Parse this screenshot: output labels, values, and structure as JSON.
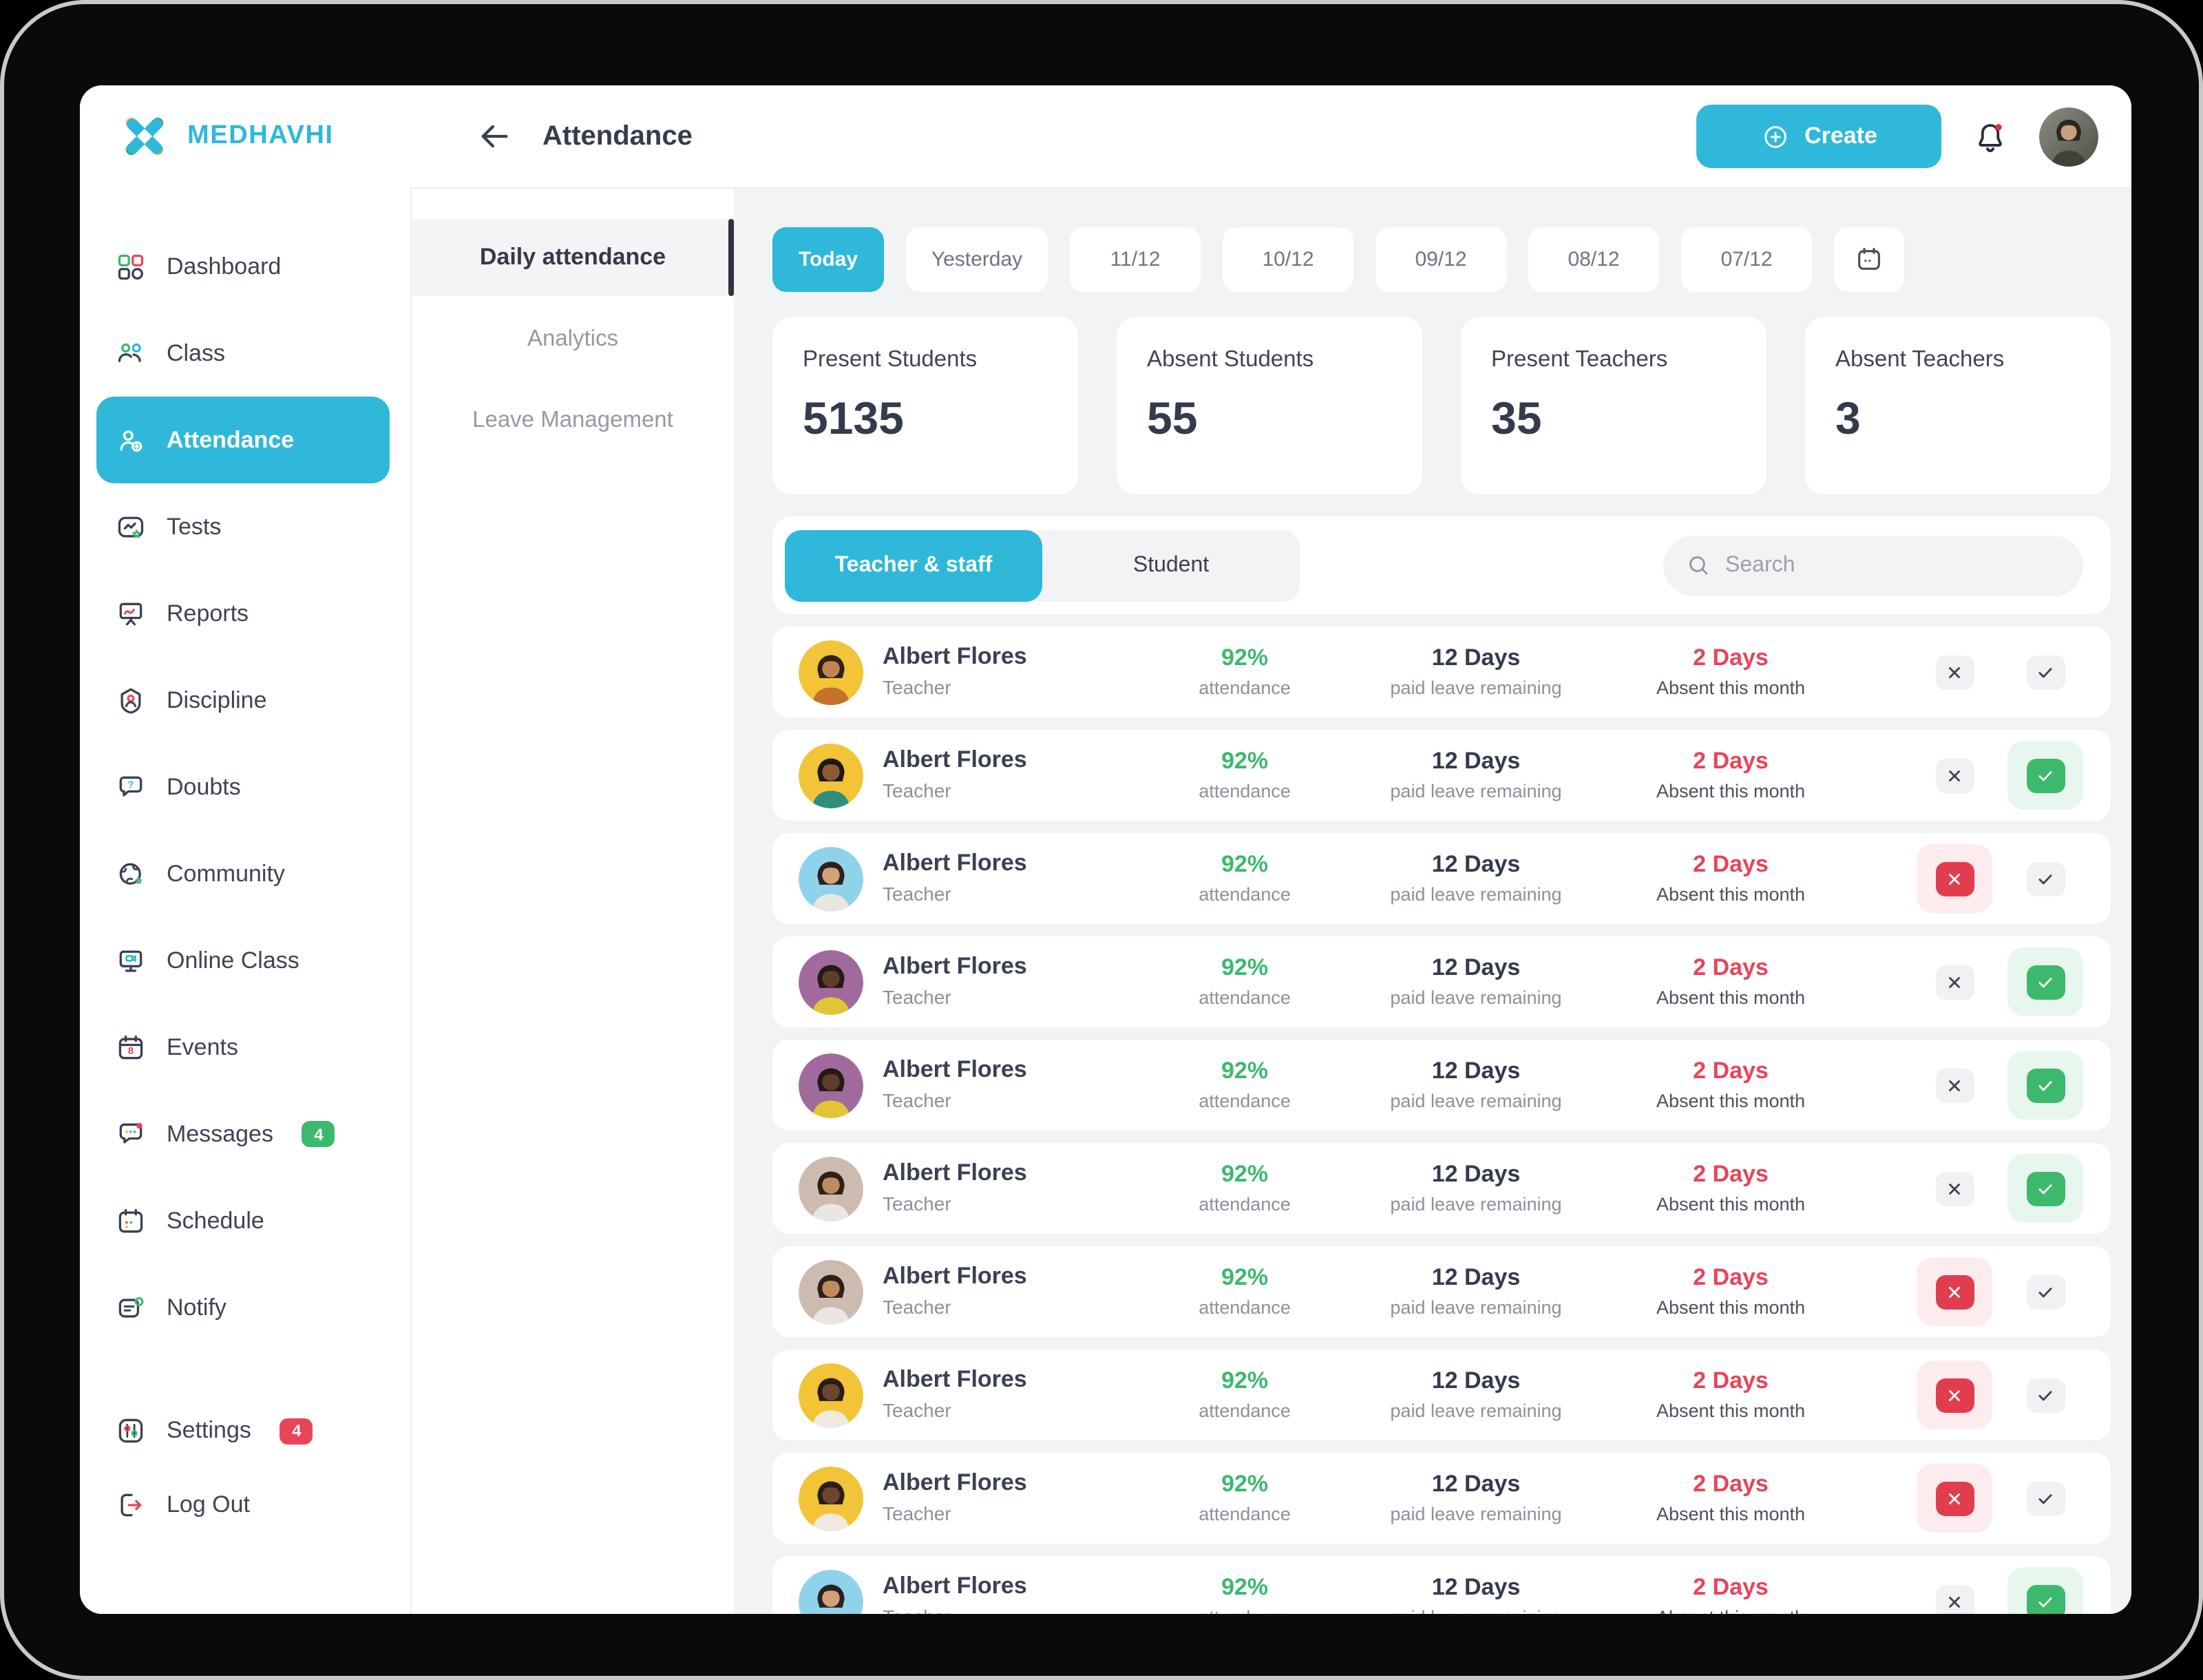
{
  "brand": {
    "name": "MEDHAVHI"
  },
  "header": {
    "title": "Attendance",
    "back_icon": "arrow-left-icon",
    "create_label": "Create",
    "bell_icon": "bell-icon",
    "avatar": "user-profile-photo"
  },
  "sidebar": {
    "items": [
      {
        "label": "Dashboard",
        "icon": "dashboard-icon"
      },
      {
        "label": "Class",
        "icon": "class-icon"
      },
      {
        "label": "Attendance",
        "icon": "attendance-icon",
        "active": true
      },
      {
        "label": "Tests",
        "icon": "tests-icon"
      },
      {
        "label": "Reports",
        "icon": "reports-icon"
      },
      {
        "label": "Discipline",
        "icon": "discipline-icon"
      },
      {
        "label": "Doubts",
        "icon": "doubts-icon"
      },
      {
        "label": "Community",
        "icon": "community-icon"
      },
      {
        "label": "Online Class",
        "icon": "online-class-icon"
      },
      {
        "label": "Events",
        "icon": "events-icon"
      },
      {
        "label": "Messages",
        "icon": "messages-icon",
        "badge": "4",
        "badge_color": "#3cb96d"
      },
      {
        "label": "Schedule",
        "icon": "schedule-icon"
      },
      {
        "label": "Notify",
        "icon": "notify-icon"
      }
    ],
    "footer_items": [
      {
        "label": "Settings",
        "icon": "settings-icon",
        "badge": "4",
        "badge_color": "#e8445a"
      },
      {
        "label": "Log Out",
        "icon": "logout-icon"
      }
    ]
  },
  "subnav": {
    "items": [
      {
        "label": "Daily attendance",
        "active": true
      },
      {
        "label": "Analytics"
      },
      {
        "label": "Leave Management"
      }
    ]
  },
  "date_tabs": {
    "items": [
      {
        "label": "Today",
        "active": true,
        "w": "w-today"
      },
      {
        "label": "Yesterday",
        "w": "w-yest"
      },
      {
        "label": "11/12",
        "w": "w-date"
      },
      {
        "label": "10/12",
        "w": "w-date"
      },
      {
        "label": "09/12",
        "w": "w-date"
      },
      {
        "label": "08/12",
        "w": "w-date"
      },
      {
        "label": "07/12",
        "w": "w-date"
      }
    ],
    "picker_icon": "calendar-icon"
  },
  "stats": [
    {
      "label": "Present Students",
      "value": "5135"
    },
    {
      "label": "Absent Students",
      "value": "55"
    },
    {
      "label": "Present Teachers",
      "value": "35"
    },
    {
      "label": "Absent Teachers",
      "value": "3"
    }
  ],
  "list": {
    "tabs": [
      {
        "label": "Teacher & staff",
        "active": true
      },
      {
        "label": "Student"
      }
    ],
    "search_placeholder": "Search",
    "rows": [
      {
        "name": "Albert Flores",
        "role": "Teacher",
        "attendance": "92%",
        "attendance_label": "attendance",
        "leave": "12 Days",
        "leave_label": "paid leave remaining",
        "absent": "2 Days",
        "absent_label": "Absent this month",
        "status": "none",
        "avatar": {
          "bg": "#f3c437",
          "hair": "#2e2119",
          "skin": "#c08552",
          "shirt": "#c4702f"
        }
      },
      {
        "name": "Albert Flores",
        "role": "Teacher",
        "attendance": "92%",
        "attendance_label": "attendance",
        "leave": "12 Days",
        "leave_label": "paid leave remaining",
        "absent": "2 Days",
        "absent_label": "Absent this month",
        "status": "present",
        "avatar": {
          "bg": "#f3c437",
          "hair": "#1f1812",
          "skin": "#8d5a33",
          "shirt": "#2f8f7b"
        }
      },
      {
        "name": "Albert Flores",
        "role": "Teacher",
        "attendance": "92%",
        "attendance_label": "attendance",
        "leave": "12 Days",
        "leave_label": "paid leave remaining",
        "absent": "2 Days",
        "absent_label": "Absent this month",
        "status": "absent",
        "avatar": {
          "bg": "#8fd3ea",
          "hair": "#2a2220",
          "skin": "#d3a077",
          "shirt": "#e9e5df"
        }
      },
      {
        "name": "Albert Flores",
        "role": "Teacher",
        "attendance": "92%",
        "attendance_label": "attendance",
        "leave": "12 Days",
        "leave_label": "paid leave remaining",
        "absent": "2 Days",
        "absent_label": "Absent this month",
        "status": "present",
        "avatar": {
          "bg": "#a06b9c",
          "hair": "#241a16",
          "skin": "#5f3d2a",
          "shirt": "#e3c437"
        }
      },
      {
        "name": "Albert Flores",
        "role": "Teacher",
        "attendance": "92%",
        "attendance_label": "attendance",
        "leave": "12 Days",
        "leave_label": "paid leave remaining",
        "absent": "2 Days",
        "absent_label": "Absent this month",
        "status": "present",
        "avatar": {
          "bg": "#a06b9c",
          "hair": "#241a16",
          "skin": "#5f3d2a",
          "shirt": "#e3c437"
        }
      },
      {
        "name": "Albert Flores",
        "role": "Teacher",
        "attendance": "92%",
        "attendance_label": "attendance",
        "leave": "12 Days",
        "leave_label": "paid leave remaining",
        "absent": "2 Days",
        "absent_label": "Absent this month",
        "status": "present",
        "avatar": {
          "bg": "#cdbbb0",
          "hair": "#2c2018",
          "skin": "#c08b5e",
          "shirt": "#eae6e0"
        }
      },
      {
        "name": "Albert Flores",
        "role": "Teacher",
        "attendance": "92%",
        "attendance_label": "attendance",
        "leave": "12 Days",
        "leave_label": "paid leave remaining",
        "absent": "2 Days",
        "absent_label": "Absent this month",
        "status": "absent",
        "avatar": {
          "bg": "#cdbbb0",
          "hair": "#2c2018",
          "skin": "#c08b5e",
          "shirt": "#eae6e0"
        }
      },
      {
        "name": "Albert Flores",
        "role": "Teacher",
        "attendance": "92%",
        "attendance_label": "attendance",
        "leave": "12 Days",
        "leave_label": "paid leave remaining",
        "absent": "2 Days",
        "absent_label": "Absent this month",
        "status": "absent",
        "avatar": {
          "bg": "#f3c437",
          "hair": "#2a1d16",
          "skin": "#6e4630",
          "shirt": "#efe9df"
        }
      },
      {
        "name": "Albert Flores",
        "role": "Teacher",
        "attendance": "92%",
        "attendance_label": "attendance",
        "leave": "12 Days",
        "leave_label": "paid leave remaining",
        "absent": "2 Days",
        "absent_label": "Absent this month",
        "status": "absent",
        "avatar": {
          "bg": "#f3c437",
          "hair": "#2a1d16",
          "skin": "#6e4630",
          "shirt": "#efe9df"
        }
      },
      {
        "name": "Albert Flores",
        "role": "Teacher",
        "attendance": "92%",
        "attendance_label": "attendance",
        "leave": "12 Days",
        "leave_label": "paid leave remaining",
        "absent": "2 Days",
        "absent_label": "Absent this month",
        "status": "present",
        "avatar": {
          "bg": "#8fd3ea",
          "hair": "#2a2220",
          "skin": "#d3a077",
          "shirt": "#e9e5df"
        }
      }
    ]
  },
  "colors": {
    "accent": "#2fb8d9",
    "green": "#3cb96d",
    "red": "#e8445a",
    "dark": "#3a4152",
    "gray": "#8b919c",
    "content_bg": "#f2f3f5"
  }
}
